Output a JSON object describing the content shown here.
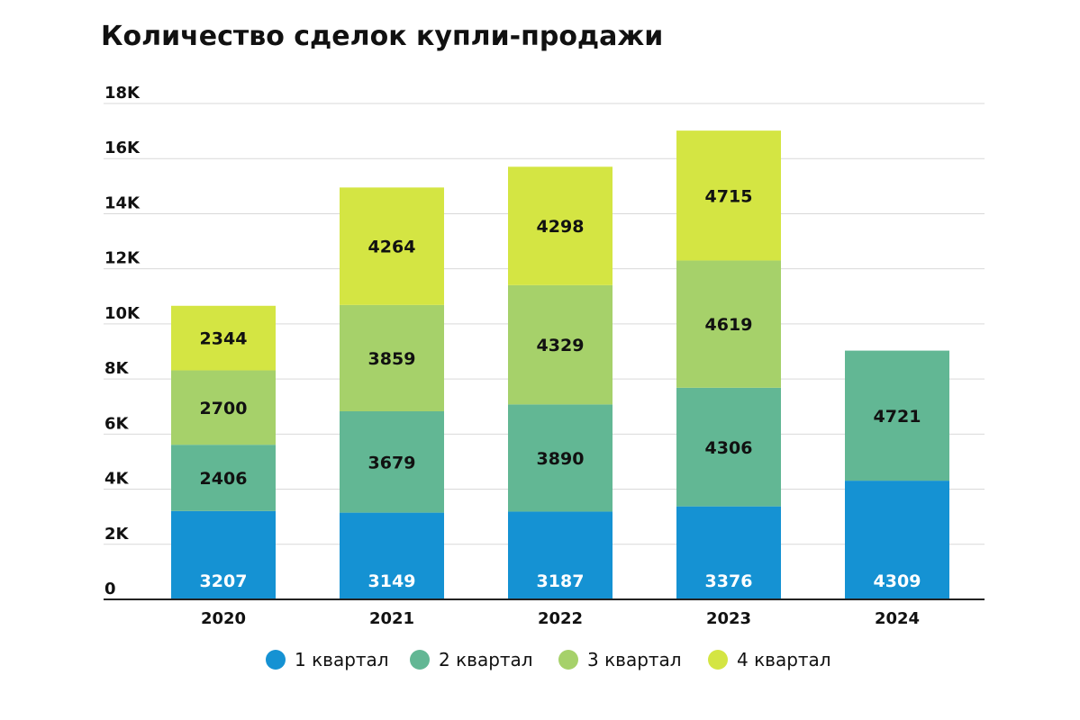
{
  "chart_data": {
    "type": "bar",
    "stacked": true,
    "title": "Количество сделок купли-продажи",
    "xlabel": "",
    "ylabel": "",
    "categories": [
      "2020",
      "2021",
      "2022",
      "2023",
      "2024"
    ],
    "ylim": [
      0,
      18000
    ],
    "yticks": [
      0,
      2000,
      4000,
      6000,
      8000,
      10000,
      12000,
      14000,
      16000,
      18000
    ],
    "ytick_labels": [
      "0",
      "2K",
      "4K",
      "6K",
      "8K",
      "10K",
      "12K",
      "14K",
      "16K",
      "18K"
    ],
    "grid": true,
    "legend_position": "bottom",
    "series": [
      {
        "name": "1 квартал",
        "color": "#1592d3",
        "label_color": "#ffffff",
        "values": [
          3207,
          3149,
          3187,
          3376,
          4309
        ],
        "labels": [
          "3207",
          "3149",
          "3187",
          "3376",
          "4309"
        ]
      },
      {
        "name": "2 квартал",
        "color": "#62b794",
        "label_color": "#111111",
        "values": [
          2406,
          3679,
          3890,
          4306,
          4721
        ],
        "labels": [
          "2406",
          "3679",
          "3890",
          "4306",
          "4721"
        ]
      },
      {
        "name": "3 квартал",
        "color": "#a6d16a",
        "label_color": "#111111",
        "values": [
          2700,
          3859,
          4329,
          4619,
          null
        ],
        "labels": [
          "2700",
          "3859",
          "4329",
          "4619",
          null
        ]
      },
      {
        "name": "4 квартал",
        "color": "#d4e543",
        "label_color": "#111111",
        "values": [
          2344,
          4264,
          4298,
          4715,
          null
        ],
        "labels": [
          "2344",
          "4264",
          "4298",
          "4715",
          null
        ]
      }
    ]
  }
}
